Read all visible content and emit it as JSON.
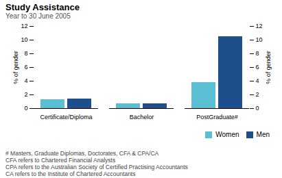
{
  "chart_data": {
    "type": "bar",
    "title": "Study Assistance",
    "subtitle": "Year to 30 June 2005",
    "categories": [
      "Certificate/Diploma",
      "Bachelor",
      "PostGraduate#"
    ],
    "series": [
      {
        "name": "Women",
        "color": "#5bbfd4",
        "values": [
          1.3,
          0.7,
          3.8
        ]
      },
      {
        "name": "Men",
        "color": "#1e4f8c",
        "values": [
          1.4,
          0.7,
          10.5
        ]
      }
    ],
    "ylabel": "% of gender",
    "ylim": [
      0,
      12
    ],
    "yticks": [
      0,
      2,
      4,
      6,
      8,
      10,
      12
    ],
    "grid": false,
    "legend": "lower right",
    "footnotes": [
      "# Masters, Graduate Diplomas, Doctorates, CFA & CPA/CA",
      "CFA refers to Chartered Financial Analysts",
      "CPA refers to the Australian Society of Certified Practising Accountants",
      "CA refers to the Institute of Chartered Accountants"
    ]
  }
}
